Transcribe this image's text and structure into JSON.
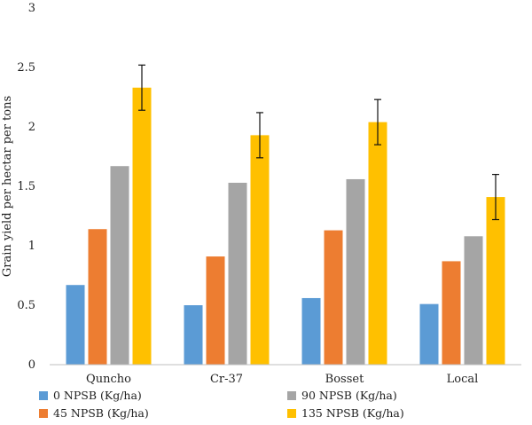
{
  "chart_data": {
    "type": "bar",
    "title": "",
    "xlabel": "",
    "ylabel": "Grain yield per hectar per tons",
    "ylim": [
      0,
      3
    ],
    "yticks": [
      0,
      0.5,
      1,
      1.5,
      2,
      2.5,
      3
    ],
    "ytick_labels": [
      "0",
      "0.5",
      "1",
      "1.5",
      "2",
      "2.5",
      "3"
    ],
    "categories": [
      "Quncho",
      "Cr-37",
      "Bosset",
      "Local"
    ],
    "grid": false,
    "legend_position": "bottom",
    "series": [
      {
        "name": "0 NPSB (Kg/ha)",
        "color": "#5B9BD5",
        "values": [
          0.67,
          0.5,
          0.56,
          0.51
        ]
      },
      {
        "name": "45 NPSB (Kg/ha)",
        "color": "#ED7D31",
        "values": [
          1.14,
          0.91,
          1.13,
          0.87
        ]
      },
      {
        "name": "90 NPSB (Kg/ha)",
        "color": "#A5A5A5",
        "values": [
          1.67,
          1.53,
          1.56,
          1.08
        ]
      },
      {
        "name": "135 NPSB (Kg/ha)",
        "color": "#FFC000",
        "values": [
          2.33,
          1.93,
          2.04,
          1.41
        ],
        "error": [
          0.19,
          0.19,
          0.19,
          0.19
        ]
      }
    ]
  }
}
